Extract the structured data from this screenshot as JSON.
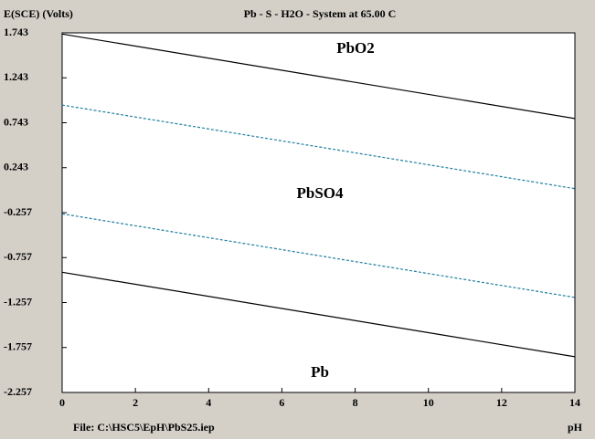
{
  "chart_data": {
    "type": "line",
    "title": "Pb - S - H2O - System at 65.00 C",
    "y_label": "E(SCE) (Volts)",
    "x_label": "pH",
    "footer": "File: C:\\HSC5\\EpH\\PbS25.iep",
    "x": [
      0,
      14
    ],
    "series": [
      {
        "color": "#000000",
        "dash": false,
        "values": [
          1.73,
          0.79
        ]
      },
      {
        "color": "#1f7f9f",
        "dash": true,
        "values": [
          0.94,
          0.01
        ]
      },
      {
        "color": "#1f7f9f",
        "dash": true,
        "values": [
          -0.27,
          -1.2
        ]
      },
      {
        "color": "#000000",
        "dash": false,
        "values": [
          -0.92,
          -1.86
        ]
      }
    ],
    "annotations": [
      "PbO2",
      "PbSO4",
      "Pb"
    ],
    "xlim": [
      0,
      14
    ],
    "xticks": [
      0,
      2,
      4,
      6,
      8,
      10,
      12,
      14
    ],
    "ylim": [
      -2.257,
      1.743
    ],
    "yticks": [
      1.743,
      1.243,
      0.743,
      0.243,
      -0.257,
      -0.757,
      -1.257,
      -1.757,
      -2.257
    ]
  }
}
